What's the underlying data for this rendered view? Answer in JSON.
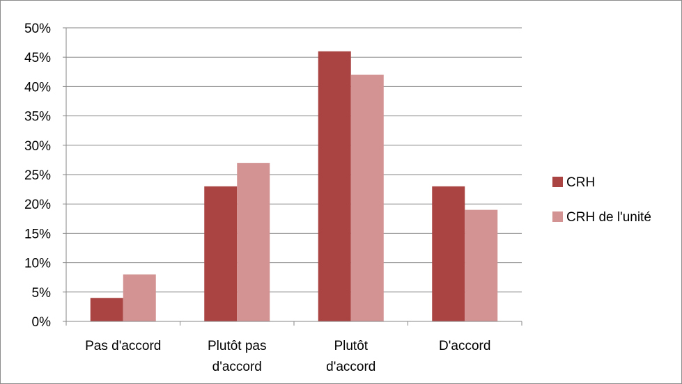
{
  "chart_data": {
    "type": "bar",
    "categories": [
      [
        "Pas d'accord"
      ],
      [
        "Plutôt pas",
        "d'accord"
      ],
      [
        "Plutôt",
        "d'accord"
      ],
      [
        "D'accord"
      ]
    ],
    "series": [
      {
        "name": "CRH",
        "color": "#a94442",
        "values": [
          4,
          23,
          46,
          23
        ]
      },
      {
        "name": "CRH de l'unité",
        "color": "#d39393",
        "values": [
          8,
          27,
          42,
          19
        ]
      }
    ],
    "y_ticks": [
      "0%",
      "5%",
      "10%",
      "15%",
      "20%",
      "25%",
      "30%",
      "35%",
      "40%",
      "45%",
      "50%"
    ],
    "ylim": [
      0,
      50
    ],
    "y_unit": "%",
    "grid": true,
    "legend_position": "right",
    "title": "",
    "xlabel": "",
    "ylabel": ""
  }
}
